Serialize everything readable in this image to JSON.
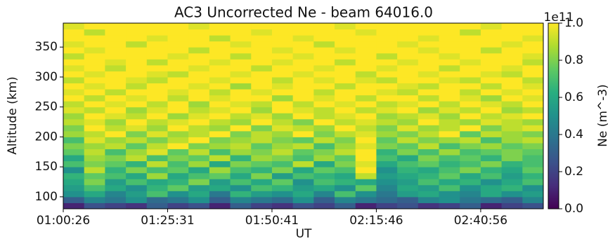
{
  "chart_data": {
    "type": "heatmap",
    "title": "AC3 Uncorrected Ne - beam 64016.0",
    "xlabel": "UT",
    "ylabel": "Altitude (km)",
    "colorbar_label": "Ne (m^-3)",
    "colorbar_offset": "1e11",
    "colormap": "viridis",
    "clim": [
      0,
      1
    ],
    "cticks": [
      {
        "value": 0,
        "label": "0.0"
      },
      {
        "value": 0.2,
        "label": "0.2"
      },
      {
        "value": 0.4,
        "label": "0.4"
      },
      {
        "value": 0.6,
        "label": "0.6"
      },
      {
        "value": 0.8,
        "label": "0.8"
      },
      {
        "value": 1,
        "label": "1.0"
      }
    ],
    "categories": [
      "01:00:26",
      null,
      null,
      null,
      null,
      "01:25:31",
      null,
      null,
      null,
      null,
      "01:50:41",
      null,
      null,
      null,
      null,
      "02:15:46",
      null,
      null,
      null,
      null,
      "02:40:56",
      null,
      null
    ],
    "ylim": [
      80,
      390
    ],
    "yticks": [
      100,
      150,
      200,
      250,
      300,
      350
    ],
    "ybins": [
      80,
      90,
      100,
      110,
      120,
      130,
      140,
      150,
      160,
      170,
      180,
      190,
      200,
      210,
      220,
      230,
      240,
      250,
      260,
      270,
      280,
      290,
      300,
      310,
      320,
      330,
      340,
      350,
      360,
      370,
      380,
      390
    ],
    "z": [
      [
        0.1,
        0.25,
        0.2,
        0.15,
        0.3,
        0.2,
        0.25,
        0.1,
        0.3,
        0.2,
        0.15,
        0.25,
        0.2,
        0.3,
        0.1,
        0.2,
        0.25,
        0.15,
        0.2,
        0.3,
        0.1,
        0.2,
        0.25
      ],
      [
        0.3,
        0.45,
        0.4,
        0.5,
        0.35,
        0.4,
        0.5,
        0.3,
        0.45,
        0.4,
        0.35,
        0.5,
        0.3,
        0.45,
        0.4,
        0.35,
        0.3,
        0.45,
        0.5,
        0.4,
        0.35,
        0.3,
        0.45
      ],
      [
        0.5,
        0.6,
        0.45,
        0.55,
        0.7,
        0.5,
        0.6,
        0.4,
        0.65,
        0.55,
        0.5,
        0.6,
        0.45,
        0.7,
        0.5,
        0.4,
        0.55,
        0.6,
        0.5,
        0.45,
        0.6,
        0.5,
        0.55
      ],
      [
        0.55,
        0.7,
        0.6,
        0.5,
        0.65,
        0.75,
        0.55,
        0.6,
        0.5,
        0.7,
        0.65,
        0.55,
        0.6,
        0.5,
        0.75,
        0.45,
        0.6,
        0.55,
        0.7,
        0.5,
        0.6,
        0.65,
        0.5
      ],
      [
        0.6,
        0.8,
        0.55,
        0.7,
        0.6,
        0.65,
        0.8,
        0.55,
        0.7,
        0.6,
        0.75,
        0.5,
        0.7,
        0.65,
        0.6,
        0.5,
        0.55,
        0.7,
        0.6,
        0.65,
        0.5,
        0.6,
        0.7
      ],
      [
        0.65,
        0.75,
        0.7,
        0.6,
        0.85,
        0.6,
        0.7,
        0.75,
        0.6,
        0.8,
        0.55,
        0.7,
        0.65,
        0.6,
        0.9,
        0.55,
        0.6,
        0.65,
        0.75,
        0.6,
        0.7,
        0.55,
        0.65
      ],
      [
        0.5,
        0.9,
        0.65,
        0.8,
        0.7,
        0.75,
        0.6,
        0.85,
        0.7,
        0.65,
        0.8,
        0.6,
        0.75,
        0.7,
        1.0,
        0.5,
        0.65,
        0.6,
        0.7,
        0.8,
        0.65,
        0.6,
        0.75
      ],
      [
        0.7,
        0.8,
        0.75,
        0.65,
        0.9,
        0.7,
        0.85,
        0.6,
        0.8,
        0.75,
        0.7,
        0.9,
        0.6,
        0.8,
        0.95,
        0.6,
        0.7,
        0.75,
        0.65,
        0.7,
        0.8,
        0.65,
        0.7
      ],
      [
        0.6,
        0.85,
        0.8,
        0.9,
        0.7,
        0.8,
        0.75,
        0.9,
        0.65,
        0.85,
        0.8,
        0.7,
        0.85,
        0.75,
        1.0,
        0.7,
        0.6,
        0.8,
        0.7,
        0.75,
        0.65,
        0.8,
        0.7
      ],
      [
        0.75,
        0.9,
        0.7,
        0.85,
        0.95,
        0.75,
        0.9,
        0.7,
        0.85,
        0.8,
        0.9,
        0.75,
        0.8,
        0.9,
        1.0,
        0.65,
        0.8,
        0.7,
        0.85,
        0.7,
        0.75,
        0.8,
        0.75
      ],
      [
        0.8,
        0.85,
        0.9,
        0.75,
        0.9,
        1.0,
        0.8,
        0.85,
        0.9,
        0.75,
        0.85,
        0.9,
        0.7,
        0.85,
        0.95,
        0.8,
        0.75,
        0.9,
        0.7,
        0.8,
        0.85,
        0.75,
        0.8
      ],
      [
        0.7,
        0.95,
        0.85,
        0.9,
        0.8,
        0.9,
        1.0,
        0.8,
        0.85,
        0.9,
        0.8,
        0.75,
        0.9,
        0.8,
        1.0,
        0.75,
        0.9,
        0.8,
        0.85,
        0.9,
        0.7,
        0.85,
        0.9
      ],
      [
        0.85,
        0.9,
        1.0,
        0.8,
        0.95,
        0.85,
        0.9,
        1.0,
        0.8,
        0.9,
        0.85,
        1.0,
        0.8,
        0.9,
        0.95,
        0.85,
        0.8,
        0.9,
        1.0,
        0.75,
        0.9,
        0.85,
        0.8
      ],
      [
        0.8,
        1.0,
        0.9,
        0.95,
        0.85,
        1.0,
        0.9,
        0.85,
        1.0,
        0.8,
        0.95,
        0.9,
        0.85,
        1.0,
        0.9,
        0.8,
        0.95,
        0.85,
        0.9,
        1.0,
        0.8,
        0.9,
        0.95
      ],
      [
        0.9,
        0.95,
        0.85,
        1.0,
        0.9,
        0.95,
        1.0,
        0.9,
        0.85,
        1.0,
        0.9,
        0.8,
        1.0,
        0.9,
        0.95,
        0.9,
        0.85,
        1.0,
        0.9,
        0.85,
        0.95,
        0.9,
        0.85
      ],
      [
        0.85,
        1.0,
        0.95,
        0.9,
        1.0,
        0.85,
        0.95,
        1.0,
        0.9,
        0.95,
        0.85,
        1.0,
        0.9,
        0.95,
        1.0,
        0.85,
        0.9,
        0.95,
        0.85,
        1.0,
        0.9,
        0.95,
        1.0
      ],
      [
        0.95,
        0.9,
        1.0,
        0.85,
        0.95,
        1.0,
        0.9,
        0.95,
        1.0,
        0.85,
        1.0,
        0.95,
        0.9,
        1.0,
        0.9,
        0.95,
        1.0,
        0.85,
        0.95,
        0.9,
        1.0,
        0.85,
        0.9
      ],
      [
        0.9,
        1.0,
        0.95,
        1.0,
        0.9,
        1.0,
        0.85,
        1.0,
        0.95,
        0.9,
        1.0,
        0.9,
        1.0,
        0.95,
        1.0,
        0.9,
        0.95,
        1.0,
        0.9,
        1.0,
        0.95,
        0.9,
        1.0
      ],
      [
        1.0,
        0.9,
        1.0,
        0.95,
        1.0,
        0.9,
        1.0,
        0.95,
        1.0,
        1.0,
        0.85,
        1.0,
        0.95,
        1.0,
        0.9,
        1.0,
        1.0,
        0.9,
        1.0,
        0.95,
        0.85,
        1.0,
        0.95
      ],
      [
        0.95,
        1.0,
        0.9,
        1.0,
        1.0,
        0.95,
        1.0,
        0.9,
        1.0,
        0.95,
        1.0,
        1.0,
        0.9,
        1.0,
        1.0,
        0.95,
        0.9,
        1.0,
        1.0,
        0.9,
        1.0,
        0.95,
        1.0
      ],
      [
        1.0,
        0.95,
        1.0,
        0.9,
        1.0,
        1.0,
        0.95,
        1.0,
        0.85,
        1.0,
        0.95,
        1.0,
        1.0,
        0.9,
        1.0,
        1.0,
        0.95,
        0.9,
        1.0,
        1.0,
        0.9,
        1.0,
        0.95
      ],
      [
        0.9,
        1.0,
        1.0,
        0.95,
        0.9,
        1.0,
        1.0,
        0.95,
        1.0,
        1.0,
        0.9,
        1.0,
        0.95,
        1.0,
        0.95,
        0.9,
        1.0,
        1.0,
        0.95,
        0.9,
        1.0,
        1.0,
        0.9
      ],
      [
        1.0,
        0.95,
        1.0,
        1.0,
        0.95,
        0.9,
        1.0,
        1.0,
        0.95,
        1.0,
        1.0,
        0.95,
        1.0,
        1.0,
        0.9,
        1.0,
        1.0,
        0.95,
        1.0,
        1.0,
        0.95,
        0.9,
        1.0
      ],
      [
        0.95,
        1.0,
        0.9,
        1.0,
        1.0,
        1.0,
        0.95,
        1.0,
        1.0,
        0.9,
        1.0,
        1.0,
        0.95,
        1.0,
        1.0,
        0.95,
        1.0,
        1.0,
        0.9,
        1.0,
        1.0,
        0.95,
        1.0
      ],
      [
        1.0,
        1.0,
        0.95,
        1.0,
        0.9,
        1.0,
        1.0,
        0.95,
        1.0,
        1.0,
        0.95,
        1.0,
        1.0,
        0.9,
        1.0,
        1.0,
        0.95,
        1.0,
        1.0,
        0.95,
        1.0,
        1.0,
        0.9
      ],
      [
        0.9,
        1.0,
        1.0,
        1.0,
        1.0,
        0.95,
        1.0,
        1.0,
        0.9,
        1.0,
        1.0,
        0.95,
        1.0,
        1.0,
        1.0,
        0.9,
        1.0,
        1.0,
        0.95,
        1.0,
        1.0,
        1.0,
        0.95
      ],
      [
        1.0,
        0.95,
        1.0,
        1.0,
        1.0,
        1.0,
        0.9,
        1.0,
        1.0,
        1.0,
        0.95,
        1.0,
        1.0,
        0.95,
        1.0,
        1.0,
        1.0,
        0.95,
        1.0,
        1.0,
        0.9,
        1.0,
        1.0
      ],
      [
        0.95,
        1.0,
        1.0,
        0.9,
        1.0,
        1.0,
        1.0,
        1.0,
        0.95,
        1.0,
        1.0,
        1.0,
        0.9,
        1.0,
        1.0,
        1.0,
        0.95,
        1.0,
        1.0,
        1.0,
        1.0,
        0.95,
        1.0
      ],
      [
        1.0,
        1.0,
        1.0,
        1.0,
        0.95,
        1.0,
        1.0,
        0.9,
        1.0,
        1.0,
        1.0,
        0.95,
        1.0,
        1.0,
        1.0,
        1.0,
        1.0,
        0.95,
        1.0,
        1.0,
        1.0,
        1.0,
        0.95
      ],
      [
        1.0,
        0.9,
        1.0,
        1.0,
        1.0,
        1.0,
        1.0,
        1.0,
        1.0,
        0.95,
        1.0,
        1.0,
        1.0,
        1.0,
        0.95,
        1.0,
        1.0,
        1.0,
        1.0,
        0.9,
        1.0,
        1.0,
        1.0
      ],
      [
        0.95,
        1.0,
        1.0,
        1.0,
        1.0,
        1.0,
        0.95,
        1.0,
        1.0,
        1.0,
        1.0,
        1.0,
        1.0,
        0.95,
        1.0,
        1.0,
        1.0,
        1.0,
        1.0,
        1.0,
        0.95,
        1.0,
        1.0
      ]
    ]
  }
}
